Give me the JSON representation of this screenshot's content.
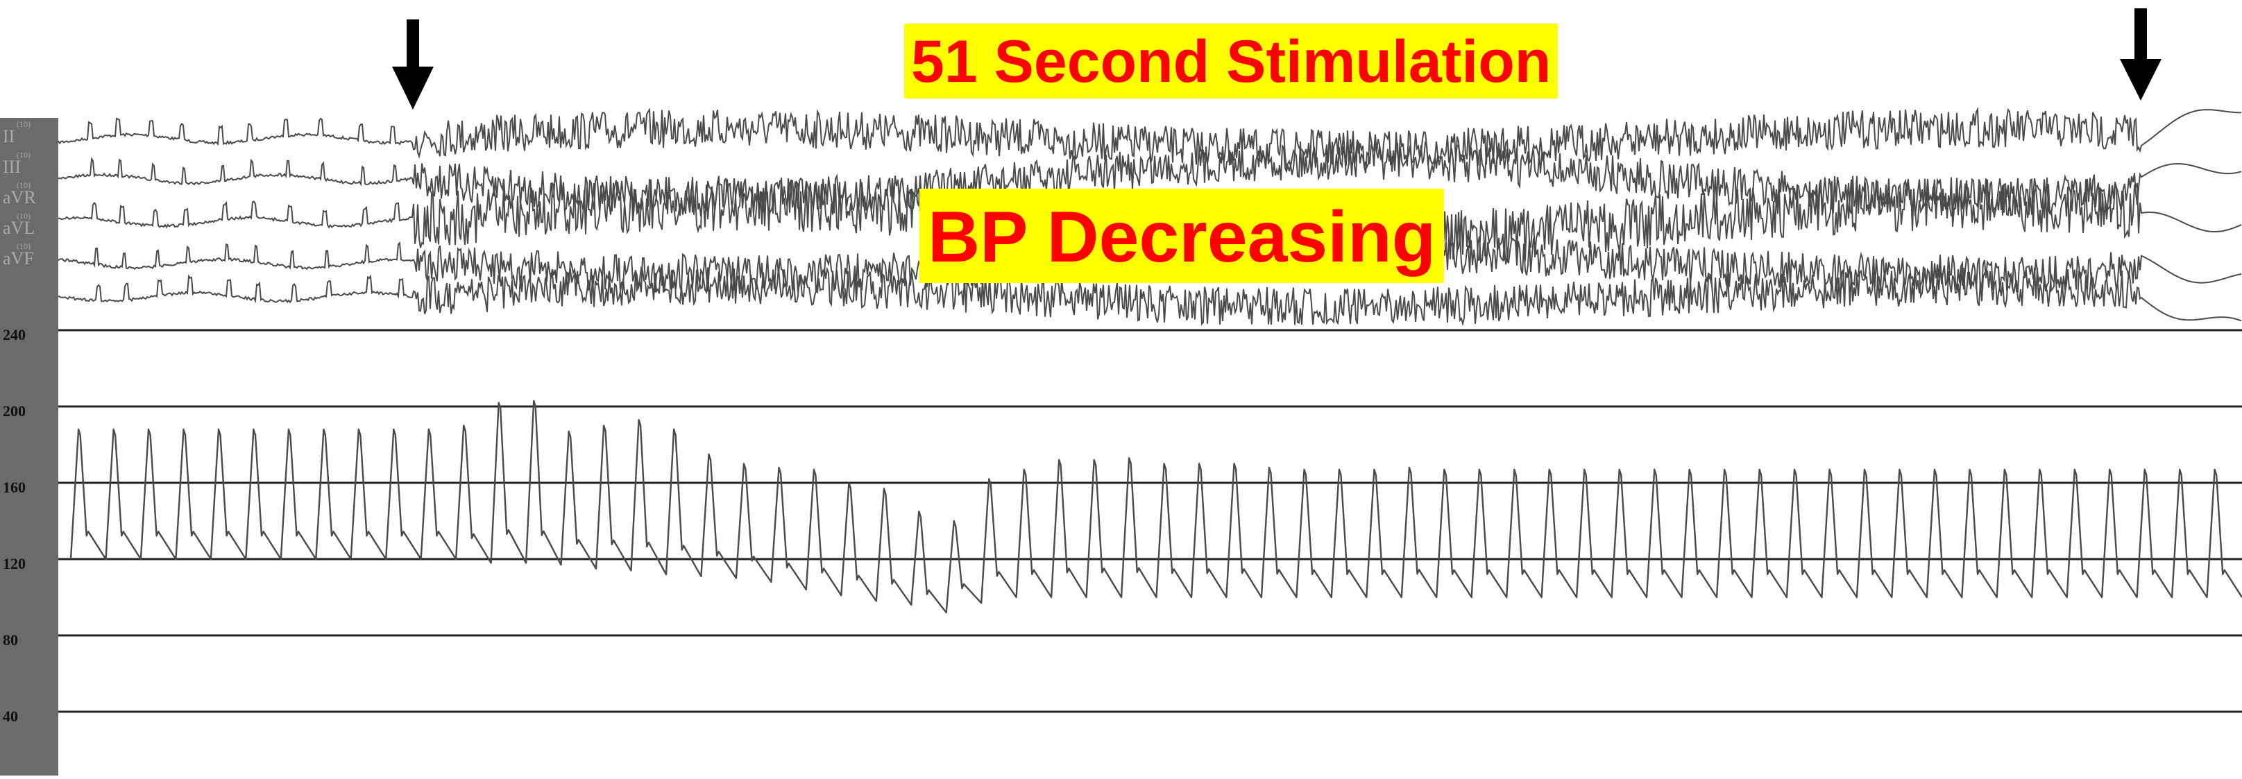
{
  "title": "51 Second Stimulation",
  "annotation": "BP Decreasing",
  "colors": {
    "label_text": "#ff0000",
    "label_background": "#ffff00",
    "trace": "#4a4a4a",
    "gridline": "#222222",
    "side_bar": "#6b6b6b",
    "arrow": "#000000"
  },
  "ecg_leads": [
    "II",
    "III",
    "aVR",
    "aVL",
    "aVF"
  ],
  "ecg_lead_scale": "10",
  "markers": [
    {
      "name": "stimulation-start",
      "icon": "down-arrow-icon"
    },
    {
      "name": "stimulation-end",
      "icon": "down-arrow-icon"
    }
  ],
  "chart_data": {
    "type": "line",
    "title": "51 Second Stimulation",
    "xlabel": "",
    "ylabel": "",
    "ylim": [
      0,
      260
    ],
    "y_ticks": [
      40,
      80,
      120,
      160,
      200,
      240
    ],
    "grid": true,
    "stimulation_duration_s": 51,
    "annotations": [
      "BP Decreasing"
    ],
    "series": [
      {
        "type": "pressure-waveform",
        "beat_systolic": [
          188,
          188,
          188,
          188,
          188,
          188,
          188,
          188,
          188,
          188,
          188,
          190,
          202,
          203,
          187,
          190,
          193,
          188,
          175,
          170,
          168,
          167,
          160,
          157,
          145,
          140,
          162,
          167,
          172,
          172,
          173,
          170,
          170,
          170,
          168,
          167,
          167,
          167,
          168,
          167,
          167,
          167,
          167,
          167,
          167,
          167,
          167,
          167,
          167,
          167,
          167,
          167,
          167,
          167,
          167,
          167,
          167,
          167,
          167,
          167,
          167,
          167
        ],
        "beat_diastolic": [
          120,
          120,
          120,
          120,
          120,
          120,
          120,
          120,
          120,
          120,
          120,
          118,
          118,
          117,
          115,
          114,
          112,
          111,
          110,
          108,
          104,
          101,
          98,
          96,
          92,
          97,
          100,
          100,
          100,
          100,
          100,
          100,
          100,
          100,
          100,
          100,
          100,
          100,
          100,
          100,
          100,
          100,
          100,
          100,
          100,
          100,
          100,
          100,
          100,
          100,
          100,
          100,
          100,
          100,
          100,
          100,
          100,
          100,
          100,
          100,
          100,
          100
        ]
      }
    ]
  }
}
